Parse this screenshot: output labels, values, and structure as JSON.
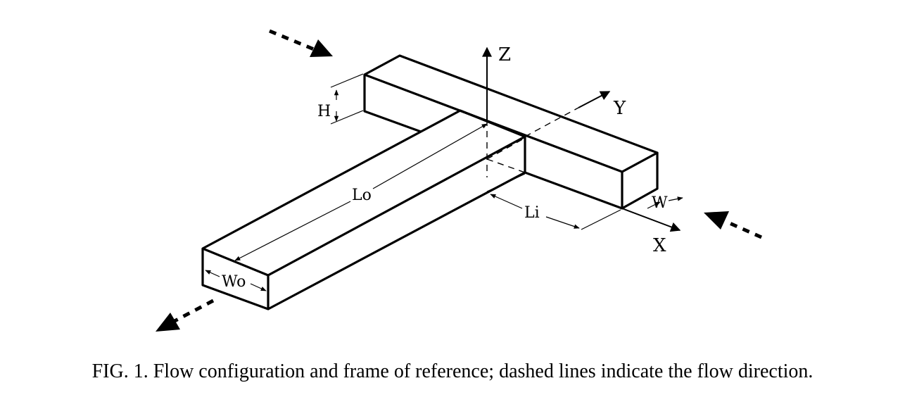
{
  "figure": {
    "axes": {
      "z": "Z",
      "y": "Y",
      "x": "X"
    },
    "dimensions": {
      "height": "H",
      "outlet_length": "Lo",
      "inlet_length": "Li",
      "outlet_width": "Wo",
      "inlet_width": "W"
    },
    "caption": "FIG. 1.  Flow configuration and frame of reference; dashed lines indicate the flow direction."
  }
}
